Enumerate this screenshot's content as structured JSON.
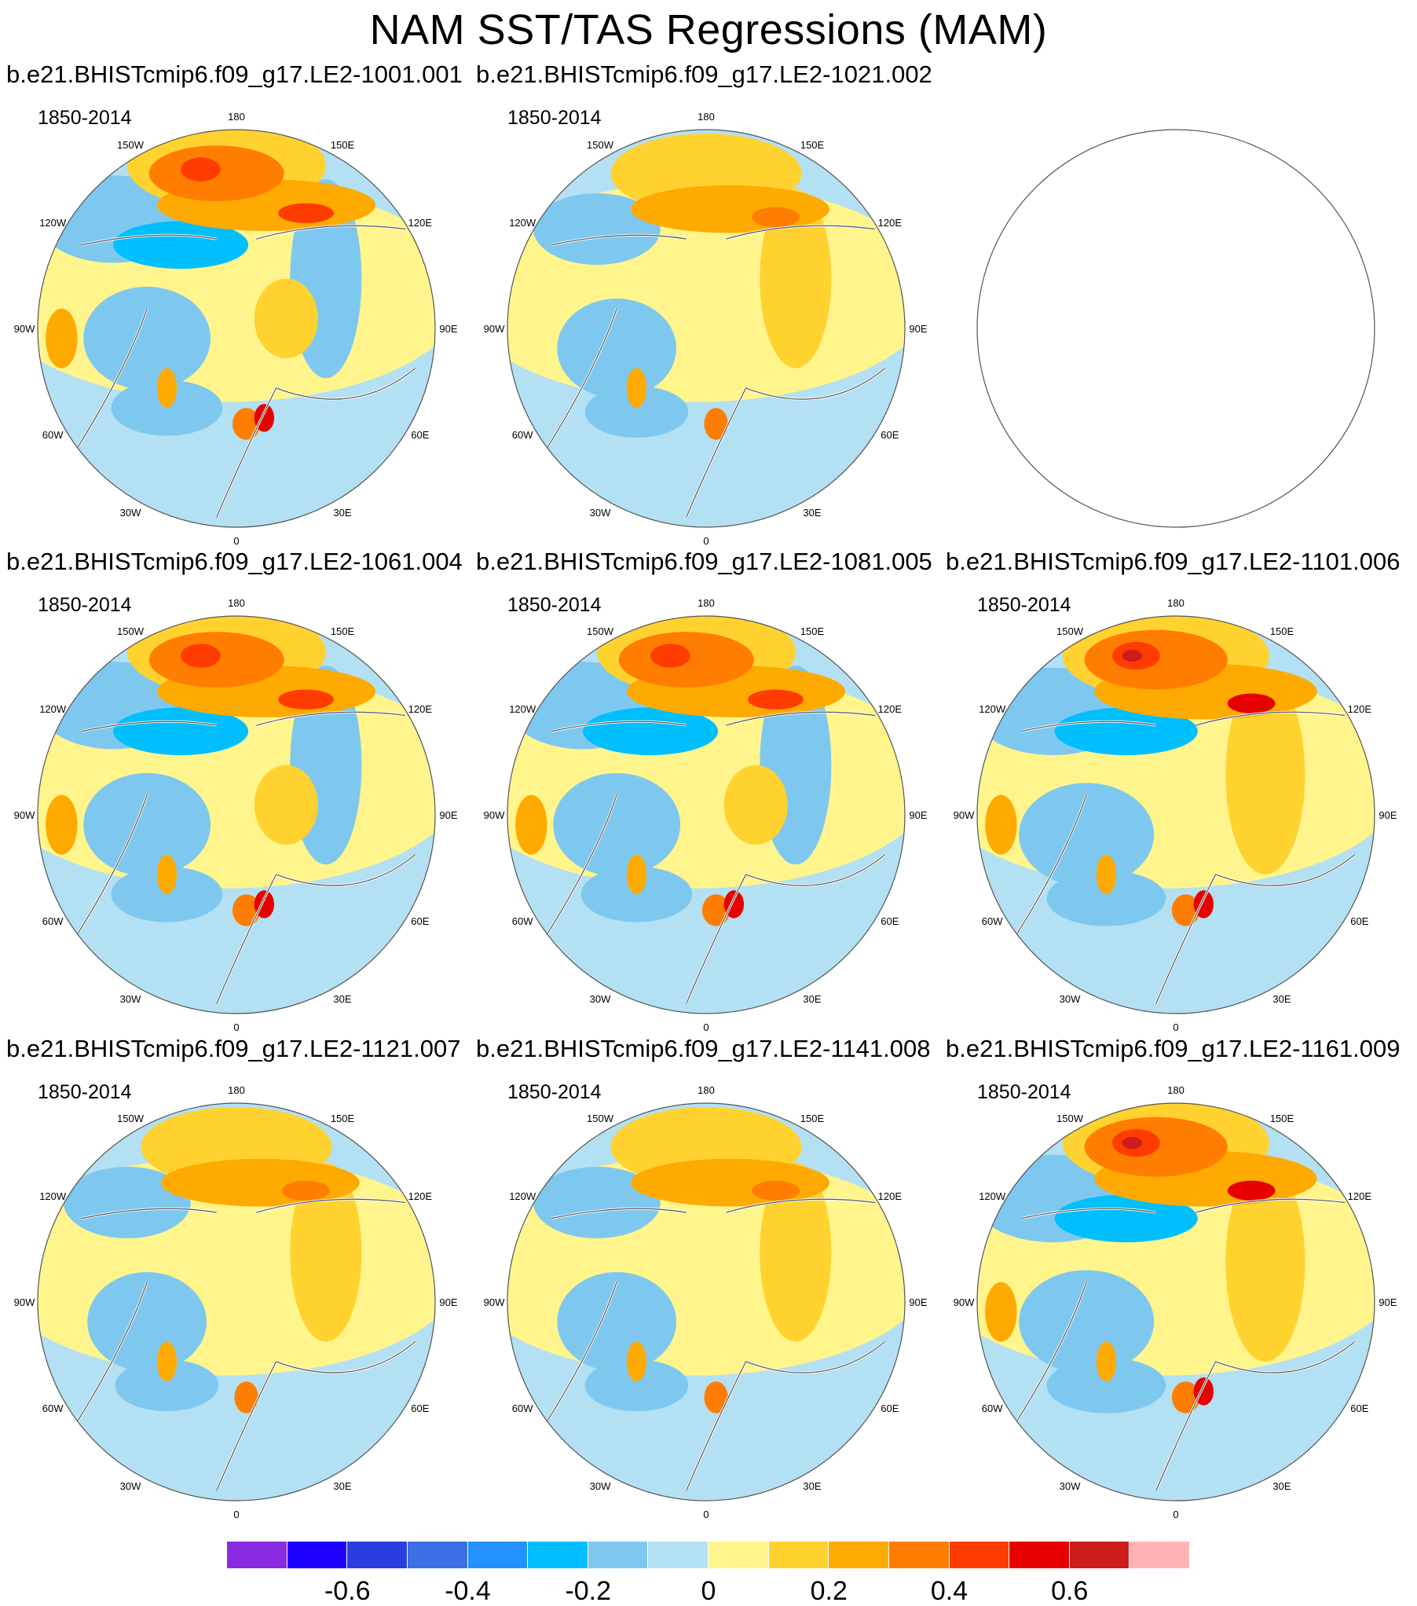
{
  "title": "NAM SST/TAS Regressions (MAM)",
  "panels": [
    {
      "title": "b.e21.BHISTcmip6.f09_g17.LE2-1001.001",
      "period": "1850-2014",
      "has_data": true
    },
    {
      "title": "b.e21.BHISTcmip6.f09_g17.LE2-1021.002",
      "period": "1850-2014",
      "has_data": true
    },
    {
      "title": "",
      "period": "",
      "has_data": false
    },
    {
      "title": "b.e21.BHISTcmip6.f09_g17.LE2-1061.004",
      "period": "1850-2014",
      "has_data": true
    },
    {
      "title": "b.e21.BHISTcmip6.f09_g17.LE2-1081.005",
      "period": "1850-2014",
      "has_data": true
    },
    {
      "title": "b.e21.BHISTcmip6.f09_g17.LE2-1101.006",
      "period": "1850-2014",
      "has_data": true
    },
    {
      "title": "b.e21.BHISTcmip6.f09_g17.LE2-1121.007",
      "period": "1850-2014",
      "has_data": true
    },
    {
      "title": "b.e21.BHISTcmip6.f09_g17.LE2-1141.008",
      "period": "1850-2014",
      "has_data": true
    },
    {
      "title": "b.e21.BHISTcmip6.f09_g17.LE2-1161.009",
      "period": "1850-2014",
      "has_data": true
    }
  ],
  "longitude_labels": [
    "180",
    "150E",
    "120E",
    "90E",
    "60E",
    "30E",
    "0",
    "30W",
    "60W",
    "90W",
    "120W",
    "150W"
  ],
  "colorbar": {
    "colors": [
      "#8a2be2",
      "#1e00ff",
      "#2a3de0",
      "#3a6fe6",
      "#2392ff",
      "#00bfff",
      "#7ec8f0",
      "#b3e0f2",
      "#fff58c",
      "#ffd230",
      "#ffaa00",
      "#ff7d00",
      "#ff3c00",
      "#e60000",
      "#cd1c1c",
      "#ffb3b3"
    ],
    "tick_labels": [
      "-0.6",
      "-0.4",
      "-0.2",
      "0",
      "0.2",
      "0.4",
      "0.6"
    ],
    "tick_values": [
      -0.6,
      -0.4,
      -0.2,
      0,
      0.2,
      0.4,
      0.6
    ],
    "level_min": -0.7,
    "level_max": 0.7,
    "level_step": 0.1
  }
}
